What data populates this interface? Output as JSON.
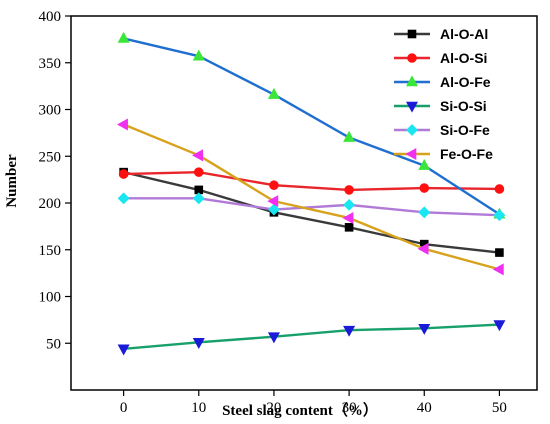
{
  "chart_data": {
    "type": "line",
    "xlabel": "Steel slag content（%）",
    "ylabel": "Number",
    "x": [
      0,
      10,
      20,
      30,
      40,
      50
    ],
    "xlim": [
      -7,
      55
    ],
    "ylim": [
      0,
      400
    ],
    "xticks": [
      "0",
      "10",
      "20",
      "30",
      "40",
      "50"
    ],
    "yticks": [
      "50",
      "100",
      "150",
      "200",
      "250",
      "300",
      "350",
      "400"
    ],
    "grid": false,
    "legend_position": "top-right",
    "series": [
      {
        "name": "Al-O-Al",
        "color": "#3a3a3a",
        "marker": "square",
        "values": [
          233,
          214,
          190,
          174,
          156,
          147
        ]
      },
      {
        "name": "Al-O-Si",
        "color": "#e8262b",
        "marker": "circle",
        "values": [
          231,
          233,
          219,
          214,
          216,
          215
        ]
      },
      {
        "name": "Al-O-Fe",
        "color": "#1f6fd0",
        "marker": "triangle-up",
        "values": [
          376,
          357,
          316,
          270,
          240,
          188
        ]
      },
      {
        "name": "Si-O-Si",
        "color": "#18a06b",
        "marker": "triangle-down",
        "values": [
          44,
          51,
          57,
          64,
          66,
          70
        ]
      },
      {
        "name": "Si-O-Fe",
        "color": "#b07ad6",
        "marker": "diamond",
        "values": [
          205,
          205,
          193,
          198,
          190,
          187
        ]
      },
      {
        "name": "Fe-O-Fe",
        "color": "#d7a21c",
        "marker": "triangle-left",
        "values": [
          284,
          251,
          202,
          184,
          151,
          129
        ]
      }
    ],
    "marker_colors": [
      "#000000",
      "#ff1010",
      "#39e639",
      "#1a1ad9",
      "#19e6f0",
      "#f030f0"
    ]
  }
}
